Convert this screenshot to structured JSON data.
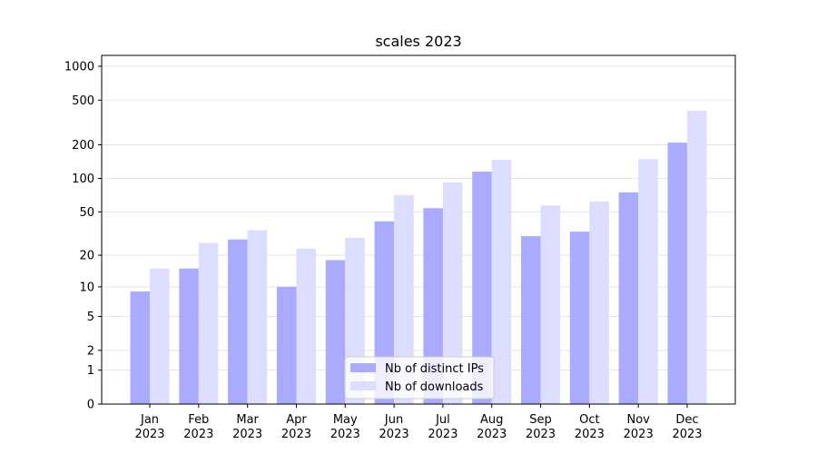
{
  "chart_data": {
    "type": "bar",
    "title": "scales 2023",
    "categories": [
      "Jan\n2023",
      "Feb\n2023",
      "Mar\n2023",
      "Apr\n2023",
      "May\n2023",
      "Jun\n2023",
      "Jul\n2023",
      "Aug\n2023",
      "Sep\n2023",
      "Oct\n2023",
      "Nov\n2023",
      "Dec\n2023"
    ],
    "series": [
      {
        "name": "Nb of distinct IPs",
        "color": "#aaaaff",
        "values": [
          9,
          15,
          28,
          10,
          18,
          41,
          54,
          115,
          30,
          33,
          75,
          209
        ]
      },
      {
        "name": "Nb of downloads",
        "color": "#ddddff",
        "values": [
          15,
          26,
          34,
          23,
          29,
          71,
          92,
          147,
          57,
          62,
          149,
          402
        ]
      }
    ],
    "yscale": "log1p",
    "ylim": [
      0,
      1250
    ],
    "yticks": [
      0,
      1,
      2,
      5,
      10,
      20,
      50,
      100,
      200,
      500,
      1000
    ],
    "grid": true,
    "legend": "lower center"
  }
}
